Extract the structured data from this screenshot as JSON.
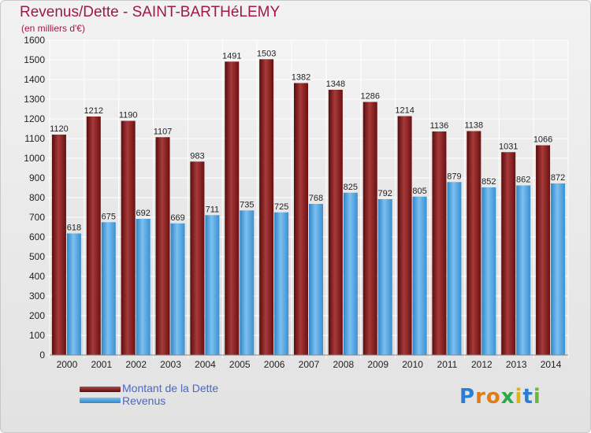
{
  "title": "Revenus/Dette - SAINT-BARTHéLEMY",
  "subtitle": "(en milliers d'€)",
  "logo_text": "Proxiti",
  "colors": {
    "dette": "#8b1a1a",
    "revenus": "#4a9fdc",
    "brand": "#a01847",
    "legend_text": "#4a67c9"
  },
  "chart_data": {
    "type": "bar",
    "categories": [
      "2000",
      "2001",
      "2002",
      "2003",
      "2004",
      "2005",
      "2006",
      "2007",
      "2008",
      "2009",
      "2010",
      "2011",
      "2012",
      "2013",
      "2014"
    ],
    "series": [
      {
        "name": "Montant de la Dette",
        "values": [
          1120,
          1212,
          1190,
          1107,
          983,
          1491,
          1503,
          1382,
          1348,
          1286,
          1214,
          1136,
          1138,
          1031,
          1066
        ]
      },
      {
        "name": "Revenus",
        "values": [
          618,
          675,
          692,
          669,
          711,
          735,
          725,
          768,
          825,
          792,
          805,
          879,
          852,
          862,
          872
        ]
      }
    ],
    "ylim": [
      0,
      1600
    ],
    "yticks": [
      0,
      100,
      200,
      300,
      400,
      500,
      600,
      700,
      800,
      900,
      1000,
      1100,
      1200,
      1300,
      1400,
      1500,
      1600
    ],
    "grid": true,
    "legend": "bottom-left"
  }
}
